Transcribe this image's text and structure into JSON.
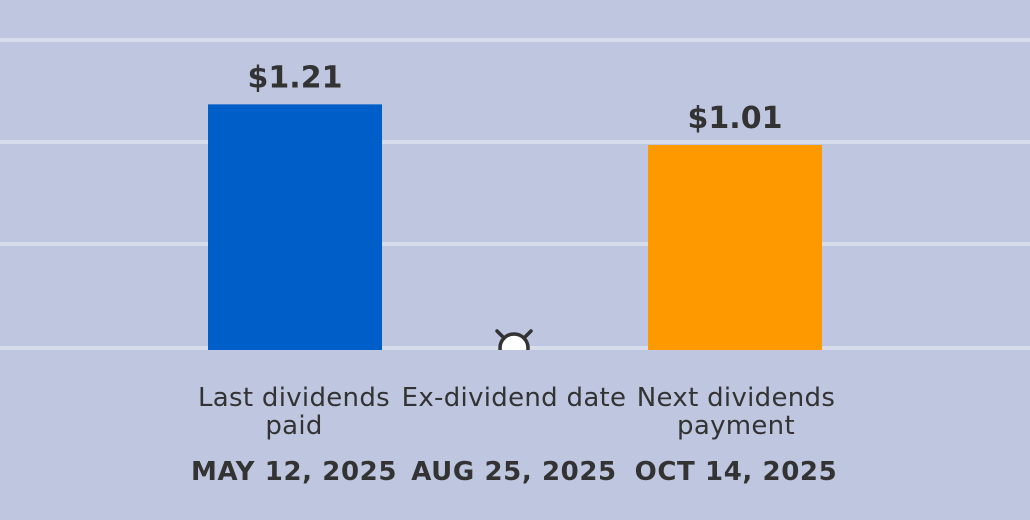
{
  "chart_data": {
    "type": "bar",
    "categories": [
      "Last dividends paid",
      "Ex-dividend date",
      "Next dividends payment"
    ],
    "dates": [
      "MAY 12, 2025",
      "AUG 25, 2025",
      "OCT 14, 2025"
    ],
    "values": [
      1.21,
      null,
      1.01
    ],
    "value_labels": [
      "$1.21",
      "",
      "$1.01"
    ],
    "bar_colors": [
      "#005ec9",
      "",
      "#ff9900"
    ],
    "ylim": [
      0,
      1.5
    ],
    "grid": true,
    "title": "",
    "xlabel": "",
    "ylabel": "",
    "ex_dividend_marker": "ex-dividend-marker-icon"
  },
  "colors": {
    "background": "#bfc6e0",
    "gridline": "#d7dceb",
    "text": "#333333"
  }
}
